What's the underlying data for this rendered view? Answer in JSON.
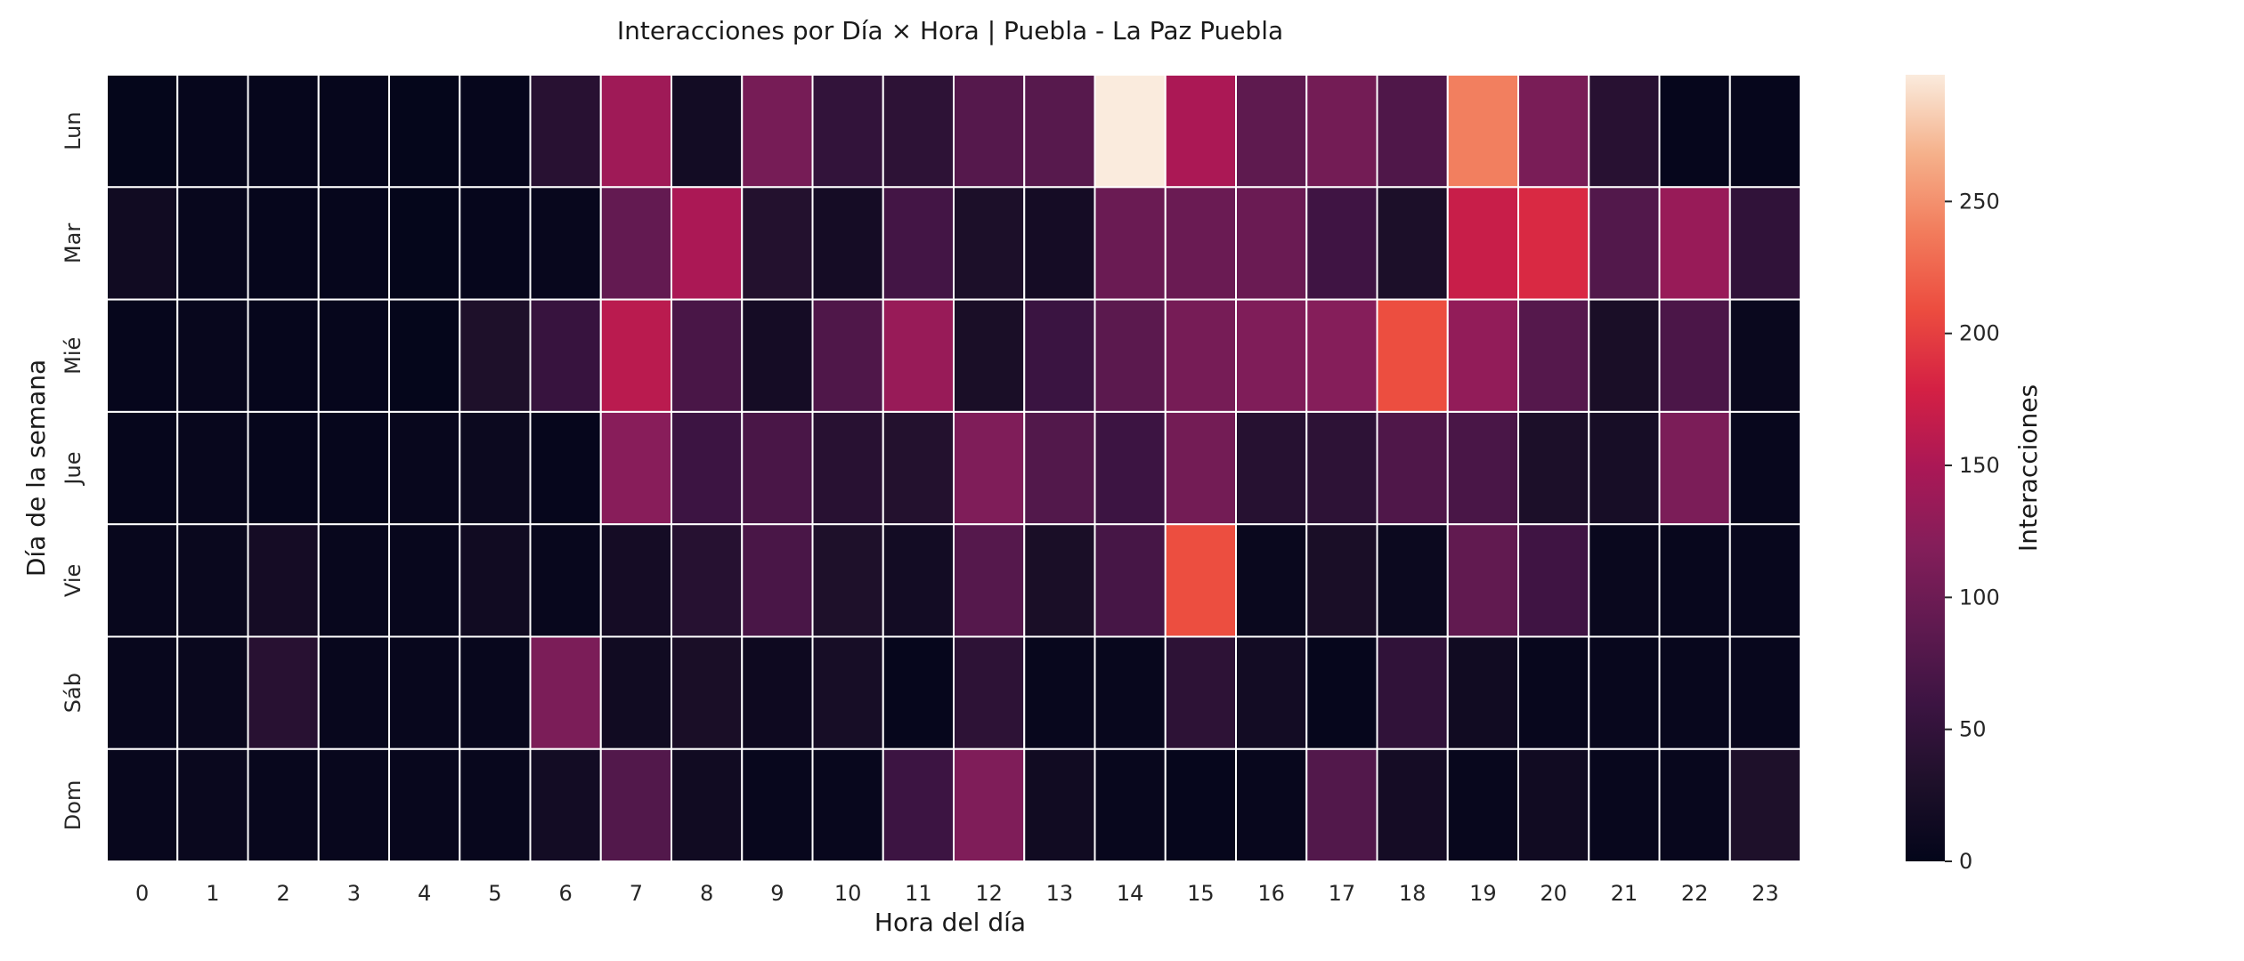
{
  "chart_data": {
    "type": "heatmap",
    "title": "Interacciones por Día × Hora | Puebla - La Paz Puebla",
    "xlabel": "Hora del día",
    "ylabel": "Día de la semana",
    "x_categories": [
      "0",
      "1",
      "2",
      "3",
      "4",
      "5",
      "6",
      "7",
      "8",
      "9",
      "10",
      "11",
      "12",
      "13",
      "14",
      "15",
      "16",
      "17",
      "18",
      "19",
      "20",
      "21",
      "22",
      "23"
    ],
    "y_categories": [
      "Lun",
      "Mar",
      "Mié",
      "Jue",
      "Vie",
      "Sáb",
      "Dom"
    ],
    "colorbar": {
      "label": "Interacciones",
      "ticks": [
        "0",
        "50",
        "100",
        "150",
        "200",
        "250"
      ],
      "tick_values": [
        0,
        50,
        100,
        150,
        200,
        250
      ],
      "range": [
        0,
        298
      ]
    },
    "colormap": "rocket",
    "values": [
      [
        2,
        3,
        3,
        3,
        2,
        3,
        40,
        140,
        18,
        108,
        50,
        45,
        80,
        82,
        298,
        150,
        88,
        105,
        75,
        240,
        110,
        40,
        3,
        3
      ],
      [
        15,
        5,
        3,
        3,
        2,
        3,
        5,
        92,
        150,
        35,
        20,
        65,
        28,
        20,
        98,
        98,
        98,
        62,
        28,
        170,
        185,
        78,
        135,
        48
      ],
      [
        3,
        5,
        3,
        3,
        2,
        30,
        55,
        160,
        70,
        20,
        75,
        135,
        25,
        58,
        85,
        108,
        115,
        120,
        210,
        130,
        80,
        25,
        72,
        8
      ],
      [
        3,
        5,
        3,
        3,
        5,
        10,
        3,
        122,
        60,
        70,
        40,
        35,
        115,
        78,
        60,
        105,
        38,
        45,
        75,
        70,
        28,
        22,
        112,
        5
      ],
      [
        5,
        8,
        20,
        5,
        5,
        15,
        5,
        20,
        38,
        70,
        30,
        18,
        80,
        25,
        68,
        210,
        8,
        25,
        10,
        90,
        62,
        8,
        5,
        5
      ],
      [
        5,
        8,
        40,
        5,
        5,
        6,
        112,
        15,
        25,
        12,
        22,
        3,
        45,
        5,
        5,
        45,
        18,
        3,
        48,
        15,
        5,
        5,
        5,
        5
      ],
      [
        5,
        8,
        5,
        5,
        5,
        5,
        18,
        78,
        15,
        5,
        5,
        60,
        115,
        15,
        5,
        3,
        5,
        78,
        20,
        5,
        15,
        5,
        5,
        30
      ]
    ]
  }
}
